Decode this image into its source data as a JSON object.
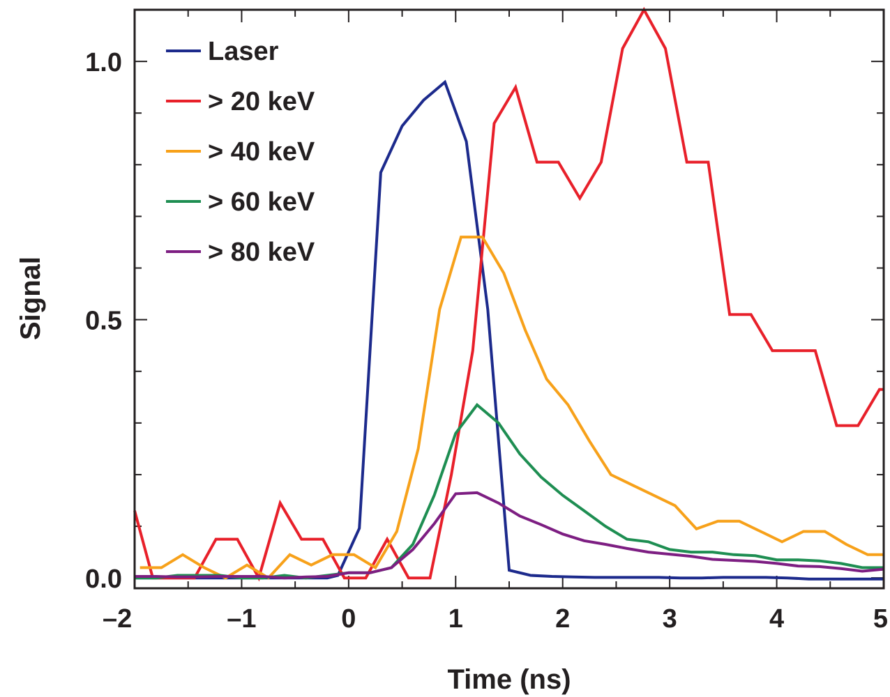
{
  "chart_data": {
    "type": "line",
    "xlabel": "Time (ns)",
    "ylabel": "Signal",
    "xlim": [
      -2,
      5
    ],
    "ylim": [
      -0.02,
      1.1
    ],
    "x_ticks": [
      -2,
      -1,
      0,
      1,
      2,
      3,
      4,
      5
    ],
    "x_tick_labels": [
      "–2",
      "–1",
      "0",
      "1",
      "2",
      "3",
      "4",
      "5"
    ],
    "y_ticks": [
      0.0,
      0.5,
      1.0
    ],
    "y_tick_labels": [
      "0.0",
      "0.5",
      "1.0"
    ],
    "x_minor_step": 0.5,
    "y_minor_step": 0.1,
    "grid": false,
    "legend_position": "top-left",
    "series": [
      {
        "name": "Laser",
        "color": "#1c2a8c",
        "x": [
          -2.0,
          -1.8,
          -1.6,
          -1.4,
          -1.2,
          -1.0,
          -0.8,
          -0.6,
          -0.4,
          -0.2,
          -0.1,
          0.1,
          0.3,
          0.5,
          0.7,
          0.9,
          1.1,
          1.3,
          1.5,
          1.7,
          1.9,
          2.1,
          2.3,
          2.5,
          2.7,
          2.9,
          3.1,
          3.3,
          3.5,
          3.7,
          3.9,
          4.1,
          4.3,
          4.5,
          4.7,
          4.9,
          5.0
        ],
        "y": [
          0.0,
          0.0,
          0.0,
          0.0,
          0.0,
          0.0,
          0.0,
          0.0,
          0.0,
          0.0,
          0.005,
          0.096,
          0.785,
          0.875,
          0.925,
          0.96,
          0.845,
          0.52,
          0.015,
          0.005,
          0.003,
          0.002,
          0.001,
          0.001,
          0.001,
          0.001,
          0.0,
          0.0,
          0.001,
          0.001,
          0.001,
          0.0,
          -0.002,
          -0.002,
          -0.002,
          -0.002,
          -0.002
        ]
      },
      {
        "name": "> 20 keV",
        "color": "#e8202a",
        "x": [
          -2.0,
          -1.83,
          -1.64,
          -1.44,
          -1.24,
          -1.04,
          -0.84,
          -0.64,
          -0.44,
          -0.24,
          -0.04,
          0.16,
          0.36,
          0.56,
          0.76,
          0.96,
          1.16,
          1.36,
          1.56,
          1.76,
          1.96,
          2.16,
          2.36,
          2.56,
          2.76,
          2.96,
          3.16,
          3.36,
          3.56,
          3.76,
          3.96,
          4.16,
          4.36,
          4.56,
          4.76,
          4.96,
          5.0
        ],
        "y": [
          0.13,
          0.0,
          0.0,
          0.0,
          0.075,
          0.075,
          0.0,
          0.145,
          0.075,
          0.075,
          0.0,
          0.0,
          0.075,
          0.0,
          0.0,
          0.2,
          0.44,
          0.88,
          0.95,
          0.805,
          0.805,
          0.735,
          0.805,
          1.025,
          1.1,
          1.025,
          0.805,
          0.805,
          0.51,
          0.51,
          0.44,
          0.44,
          0.44,
          0.295,
          0.295,
          0.365,
          0.365
        ]
      },
      {
        "name": "> 40 keV",
        "color": "#f7a11a",
        "x": [
          -1.95,
          -1.75,
          -1.55,
          -1.35,
          -1.15,
          -0.95,
          -0.75,
          -0.55,
          -0.35,
          -0.15,
          0.05,
          0.25,
          0.45,
          0.65,
          0.85,
          1.05,
          1.25,
          1.45,
          1.65,
          1.85,
          2.05,
          2.25,
          2.45,
          2.65,
          2.85,
          3.05,
          3.25,
          3.45,
          3.65,
          3.85,
          4.05,
          4.25,
          4.45,
          4.65,
          4.85,
          5.0
        ],
        "y": [
          0.02,
          0.02,
          0.045,
          0.02,
          0.0,
          0.025,
          0.0,
          0.045,
          0.025,
          0.045,
          0.045,
          0.02,
          0.09,
          0.25,
          0.52,
          0.66,
          0.66,
          0.59,
          0.48,
          0.385,
          0.335,
          0.265,
          0.2,
          0.18,
          0.16,
          0.14,
          0.095,
          0.11,
          0.11,
          0.09,
          0.07,
          0.09,
          0.09,
          0.065,
          0.045,
          0.045
        ]
      },
      {
        "name": "> 60 keV",
        "color": "#1e8e52",
        "x": [
          -2.0,
          -1.8,
          -1.6,
          -1.4,
          -1.2,
          -1.0,
          -0.8,
          -0.6,
          -0.4,
          -0.2,
          0.0,
          0.2,
          0.4,
          0.6,
          0.8,
          1.0,
          1.2,
          1.4,
          1.6,
          1.8,
          2.0,
          2.2,
          2.4,
          2.6,
          2.8,
          3.0,
          3.2,
          3.4,
          3.6,
          3.8,
          4.0,
          4.2,
          4.4,
          4.6,
          4.8,
          5.0
        ],
        "y": [
          0.0,
          0.0,
          0.005,
          0.005,
          0.005,
          0.0,
          0.0,
          0.005,
          0.0,
          0.005,
          0.01,
          0.01,
          0.02,
          0.065,
          0.16,
          0.28,
          0.335,
          0.3,
          0.24,
          0.195,
          0.16,
          0.13,
          0.1,
          0.075,
          0.07,
          0.055,
          0.05,
          0.05,
          0.045,
          0.043,
          0.035,
          0.035,
          0.033,
          0.028,
          0.02,
          0.02
        ]
      },
      {
        "name": "> 80 keV",
        "color": "#7d1e82",
        "x": [
          -2.0,
          -1.8,
          -1.6,
          -1.4,
          -1.2,
          -1.0,
          -0.8,
          -0.6,
          -0.4,
          -0.2,
          0.0,
          0.2,
          0.4,
          0.6,
          0.8,
          1.0,
          1.2,
          1.4,
          1.6,
          1.8,
          2.0,
          2.2,
          2.4,
          2.6,
          2.8,
          3.0,
          3.2,
          3.4,
          3.6,
          3.8,
          4.0,
          4.2,
          4.4,
          4.6,
          4.8,
          5.0
        ],
        "y": [
          0.003,
          0.003,
          0.002,
          0.002,
          0.003,
          0.003,
          0.003,
          0.0,
          0.002,
          0.003,
          0.01,
          0.01,
          0.02,
          0.055,
          0.105,
          0.163,
          0.165,
          0.145,
          0.12,
          0.103,
          0.085,
          0.072,
          0.065,
          0.057,
          0.05,
          0.046,
          0.042,
          0.036,
          0.034,
          0.032,
          0.028,
          0.023,
          0.022,
          0.018,
          0.013,
          0.017
        ]
      }
    ]
  }
}
